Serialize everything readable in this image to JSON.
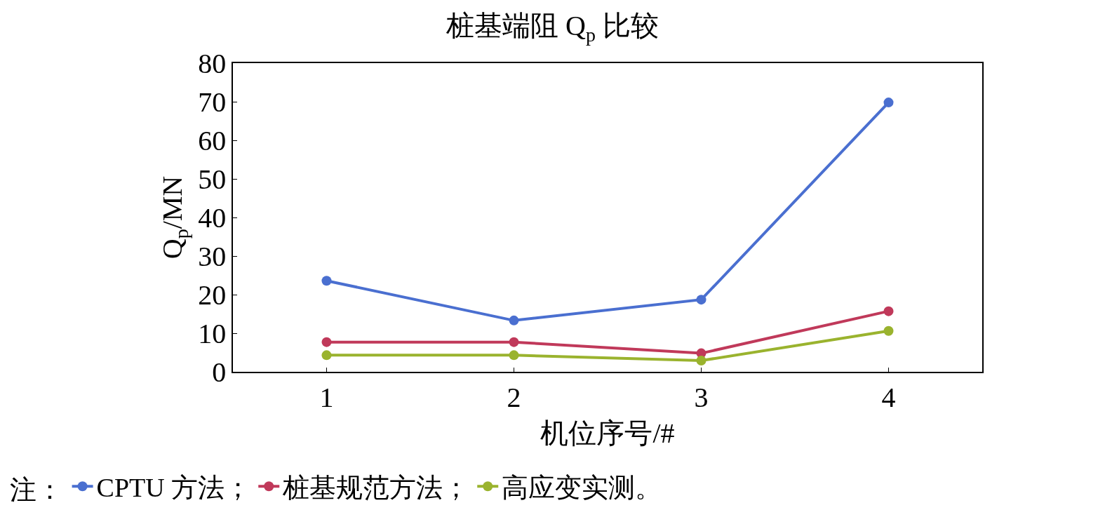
{
  "chart_data": {
    "type": "line",
    "title": "桩基端阻 Q$_{p}$ 比较",
    "xlabel": "机位序号/#",
    "ylabel": "Q$_{p}$/MN",
    "legend_title": "注：",
    "x": [
      1,
      2,
      3,
      4
    ],
    "series": [
      {
        "name": "CPTU 方法；",
        "color": "#4a6fd0",
        "values": [
          23.6,
          13.3,
          18.7,
          69.8
        ]
      },
      {
        "name": "桩基规范方法；",
        "color": "#c0395a",
        "values": [
          7.7,
          7.7,
          4.8,
          15.7
        ]
      },
      {
        "name": "高应变实测。",
        "color": "#9ab32e",
        "values": [
          4.3,
          4.3,
          2.9,
          10.6
        ]
      }
    ],
    "xlim": [
      0.5,
      4.5
    ],
    "xticks": [
      1,
      2,
      3,
      4
    ],
    "ylim": [
      0,
      80
    ],
    "yticks": [
      0,
      10,
      20,
      30,
      40,
      50,
      60,
      70,
      80
    ],
    "legend": "bottom",
    "marker": "circle",
    "line_style": "solid"
  }
}
